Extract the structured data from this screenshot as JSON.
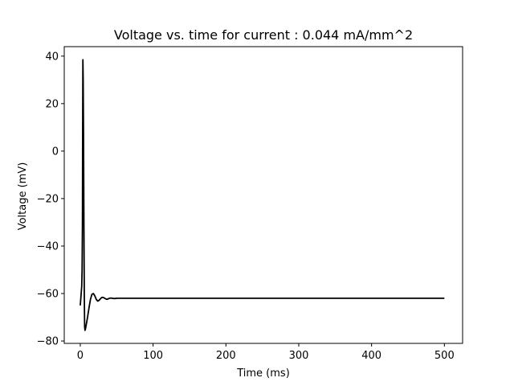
{
  "chart_data": {
    "type": "line",
    "title": "Voltage vs. time for current : 0.044 mA/mm^2",
    "xlabel": "Time (ms)",
    "ylabel": "Voltage (mV)",
    "xlim": [
      -22,
      525
    ],
    "ylim": [
      -81,
      44
    ],
    "xticks": [
      0,
      100,
      200,
      300,
      400,
      500
    ],
    "yticks": [
      -80,
      -60,
      -40,
      -20,
      0,
      20,
      40
    ],
    "grid": false,
    "legend": "none",
    "series": [
      {
        "color": "#000000",
        "x": [
          0,
          1,
          2,
          2.5,
          3,
          3.3,
          3.6,
          4,
          4.5,
          5,
          5.5,
          6,
          6.5,
          7,
          8,
          10,
          12,
          14,
          16,
          18,
          20,
          22,
          24,
          26,
          28,
          30,
          32,
          34,
          36,
          38,
          40,
          42,
          44,
          46,
          48,
          50,
          55,
          60,
          70,
          80,
          100,
          150,
          200,
          300,
          400,
          500
        ],
        "y": [
          -65,
          -61,
          -57,
          -50,
          -30,
          10,
          38.5,
          30,
          5,
          -30,
          -60,
          -74,
          -75.5,
          -75,
          -73.5,
          -70,
          -66,
          -62.5,
          -60.3,
          -60,
          -61,
          -62.5,
          -63.2,
          -62.8,
          -62.1,
          -61.6,
          -61.7,
          -62.1,
          -62.4,
          -62.3,
          -62.0,
          -61.9,
          -62.0,
          -62.1,
          -62.1,
          -62.0,
          -62.0,
          -62.0,
          -62.0,
          -62.0,
          -62.0,
          -62.0,
          -62.0,
          -62.0,
          -62.0,
          -62.0
        ]
      }
    ]
  }
}
